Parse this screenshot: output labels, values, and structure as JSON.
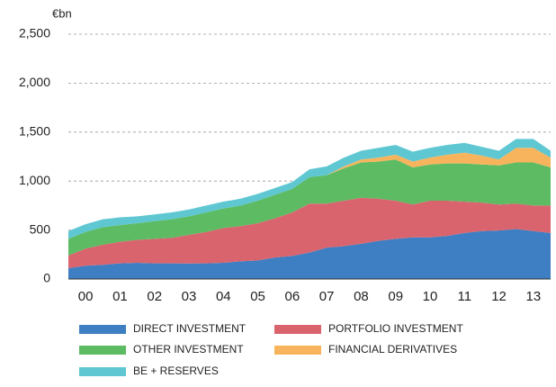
{
  "chart_data": {
    "type": "stacked_area",
    "y_label": "€bn",
    "categories": [
      null,
      "00",
      null,
      "01",
      null,
      "02",
      null,
      "03",
      null,
      "04",
      null,
      "05",
      null,
      "06",
      null,
      "07",
      null,
      "08",
      null,
      "09",
      null,
      "10",
      null,
      "11",
      null,
      "12",
      null,
      "13",
      null
    ],
    "series": [
      {
        "name": "DIRECT INVESTMENT",
        "color": "#3e7ec3",
        "values": [
          110,
          135,
          145,
          160,
          165,
          160,
          160,
          158,
          160,
          165,
          180,
          190,
          220,
          235,
          270,
          320,
          335,
          360,
          390,
          410,
          425,
          425,
          440,
          470,
          490,
          495,
          510,
          490,
          470
        ]
      },
      {
        "name": "PORTFOLIO INVESTMENT",
        "color": "#d9646e",
        "values": [
          130,
          175,
          205,
          220,
          235,
          250,
          260,
          292,
          320,
          355,
          360,
          380,
          400,
          445,
          500,
          450,
          465,
          470,
          430,
          390,
          335,
          375,
          360,
          320,
          290,
          265,
          260,
          260,
          280
        ]
      },
      {
        "name": "OTHER INVESTMENT",
        "color": "#5dbb63",
        "values": [
          170,
          170,
          180,
          170,
          170,
          180,
          190,
          190,
          200,
          200,
          210,
          230,
          240,
          240,
          270,
          290,
          330,
          360,
          380,
          420,
          380,
          370,
          380,
          390,
          390,
          400,
          420,
          440,
          390
        ]
      },
      {
        "name": "FINANCIAL DERIVATIVES",
        "color": "#f7b45c",
        "values": [
          0,
          0,
          0,
          0,
          0,
          0,
          0,
          0,
          0,
          0,
          0,
          0,
          0,
          0,
          0,
          0,
          20,
          30,
          40,
          50,
          60,
          70,
          90,
          110,
          90,
          60,
          150,
          150,
          100
        ]
      },
      {
        "name": "BE + RESERVES",
        "color": "#5ec7d1",
        "values": [
          80,
          80,
          80,
          80,
          70,
          70,
          70,
          70,
          70,
          70,
          70,
          70,
          70,
          70,
          80,
          90,
          90,
          90,
          100,
          100,
          100,
          100,
          100,
          100,
          90,
          90,
          90,
          90,
          70
        ]
      }
    ],
    "ylim": [
      0,
      2500
    ],
    "yticks": [
      0,
      500,
      {
        "value": 1000,
        "label": "1,000"
      },
      {
        "value": 1500,
        "label": "1,500"
      },
      {
        "value": 2000,
        "label": "2,000"
      },
      {
        "value": 2500,
        "label": "2,500"
      }
    ],
    "grid": true,
    "legend": "bottom"
  }
}
